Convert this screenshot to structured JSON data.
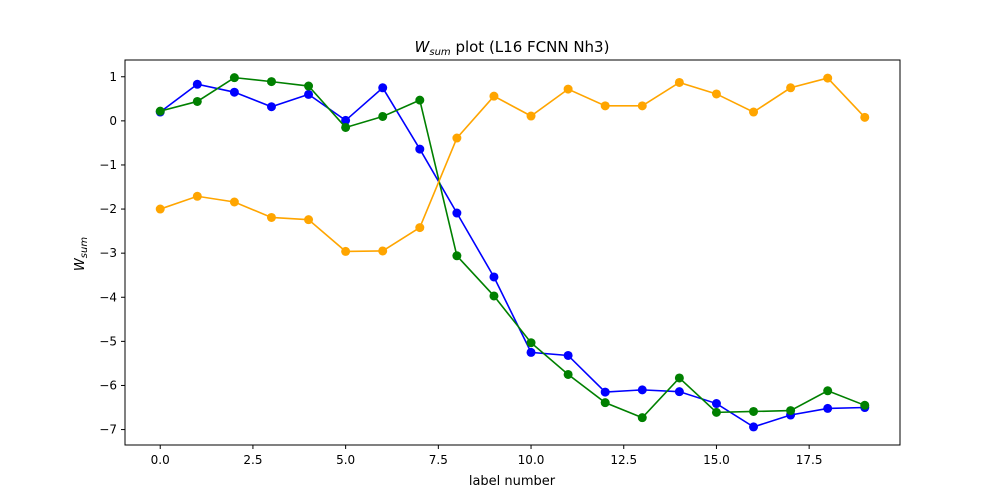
{
  "chart_data": {
    "type": "line",
    "title_main": "W",
    "title_sub": "sum",
    "title_rest": " plot (L16 FCNN Nh3)",
    "xlabel": "label number",
    "ylabel_main": "W",
    "ylabel_sub": "sum",
    "xlim": [
      -0.95,
      19.95
    ],
    "ylim": [
      -7.35,
      1.38
    ],
    "xticks": [
      0.0,
      2.5,
      5.0,
      7.5,
      10.0,
      12.5,
      15.0,
      17.5
    ],
    "xtick_labels": [
      "0.0",
      "2.5",
      "5.0",
      "7.5",
      "10.0",
      "12.5",
      "15.0",
      "17.5"
    ],
    "yticks": [
      1,
      0,
      -1,
      -2,
      -3,
      -4,
      -5,
      -6,
      -7
    ],
    "ytick_labels": [
      "1",
      "0",
      "−1",
      "−2",
      "−3",
      "−4",
      "−5",
      "−6",
      "−7"
    ],
    "grid": false,
    "x": [
      0,
      1,
      2,
      3,
      4,
      5,
      6,
      7,
      8,
      9,
      10,
      11,
      12,
      13,
      14,
      15,
      16,
      17,
      18,
      19
    ],
    "series": [
      {
        "color": "#0000ff",
        "values": [
          0.2,
          0.83,
          0.65,
          0.32,
          0.6,
          0.01,
          0.75,
          -0.64,
          -2.09,
          -3.54,
          -5.25,
          -5.32,
          -6.15,
          -6.1,
          -6.14,
          -6.41,
          -6.94,
          -6.67,
          -6.52,
          -6.5
        ]
      },
      {
        "color": "#008000",
        "values": [
          0.22,
          0.44,
          0.98,
          0.89,
          0.79,
          -0.15,
          0.1,
          0.47,
          -3.06,
          -3.97,
          -5.03,
          -5.75,
          -6.39,
          -6.73,
          -5.83,
          -6.61,
          -6.59,
          -6.57,
          -6.12,
          -6.45
        ]
      },
      {
        "color": "#ffa500",
        "values": [
          -2.0,
          -1.71,
          -1.84,
          -2.19,
          -2.24,
          -2.96,
          -2.95,
          -2.42,
          -0.39,
          0.56,
          0.11,
          0.72,
          0.34,
          0.34,
          0.87,
          0.61,
          0.2,
          0.75,
          0.97,
          0.08
        ]
      }
    ]
  }
}
